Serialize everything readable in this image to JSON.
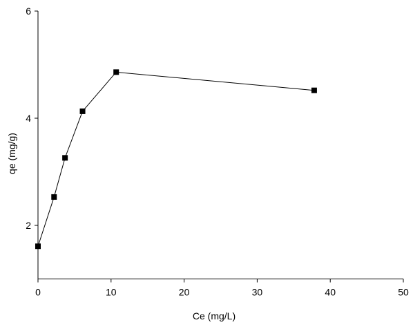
{
  "chart_data": {
    "type": "line",
    "x_label": "Ce (mg/L)",
    "y_label": "qe (mg/g)",
    "series": [
      {
        "color": "#000000",
        "x": [
          0,
          2.2,
          3.7,
          6.1,
          10.7,
          37.8
        ],
        "values": [
          1.61,
          2.53,
          3.26,
          4.13,
          4.86,
          4.52
        ]
      }
    ],
    "xlim": [
      0,
      50
    ],
    "xticks": [
      0,
      10,
      20,
      30,
      40,
      50
    ],
    "ylim": [
      1,
      6
    ],
    "yticks": [
      2,
      4,
      6
    ],
    "grid": false
  }
}
